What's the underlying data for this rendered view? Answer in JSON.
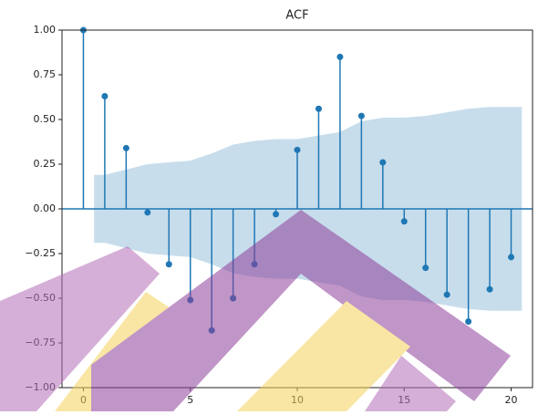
{
  "chart_data": {
    "type": "stem",
    "title": "ACF",
    "color": "#1f77b4",
    "band_color": "#1f77b4",
    "x": [
      0,
      1,
      2,
      3,
      4,
      5,
      6,
      7,
      8,
      9,
      10,
      11,
      12,
      13,
      14,
      15,
      16,
      17,
      18,
      19,
      20
    ],
    "values": [
      1.0,
      0.63,
      0.34,
      -0.02,
      -0.31,
      -0.51,
      -0.68,
      -0.5,
      -0.31,
      -0.03,
      0.33,
      0.56,
      0.85,
      0.52,
      0.26,
      -0.07,
      -0.33,
      -0.48,
      -0.63,
      -0.45,
      -0.27
    ],
    "band_x": [
      1,
      2,
      3,
      4,
      5,
      6,
      7,
      8,
      9,
      10,
      11,
      12,
      13,
      14,
      15,
      16,
      17,
      18,
      19,
      20
    ],
    "band_upper": [
      0.19,
      0.22,
      0.25,
      0.26,
      0.27,
      0.31,
      0.36,
      0.38,
      0.39,
      0.39,
      0.41,
      0.43,
      0.49,
      0.51,
      0.51,
      0.52,
      0.54,
      0.56,
      0.57,
      0.57
    ],
    "band_lower": [
      -0.19,
      -0.22,
      -0.25,
      -0.26,
      -0.27,
      -0.31,
      -0.36,
      -0.38,
      -0.39,
      -0.39,
      -0.41,
      -0.43,
      -0.49,
      -0.51,
      -0.51,
      -0.52,
      -0.54,
      -0.56,
      -0.57,
      -0.57
    ],
    "xlim": [
      -1,
      21
    ],
    "ylim": [
      -1,
      1
    ],
    "xticks": [
      0,
      5,
      10,
      15,
      20
    ],
    "yticks": [
      {
        "value": -1,
        "label": "−1.00"
      },
      {
        "value": -0.75,
        "label": "−0.75"
      },
      {
        "value": -0.5,
        "label": "−0.50"
      },
      {
        "value": -0.25,
        "label": "−0.25"
      },
      {
        "value": 0,
        "label": "0.00"
      },
      {
        "value": 0.25,
        "label": "0.25"
      },
      {
        "value": 0.5,
        "label": "0.50"
      },
      {
        "value": 0.75,
        "label": "0.75"
      },
      {
        "value": 1,
        "label": "1.00"
      }
    ]
  }
}
